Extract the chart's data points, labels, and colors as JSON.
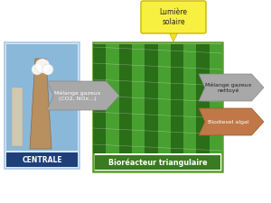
{
  "title_bioreacteur": "Bioréacteur triangulaire",
  "title_centrale": "CENTRALE",
  "label_lumiere": "Lumière\nsolaire",
  "label_melange_in": "Mélange gazeux\n(CO2, NOx...)",
  "label_melange_out": "Mélange gazeux\nnettoyé",
  "label_biodiesel": "Biodiesel algal",
  "arrow_yellow_face": "#f5e020",
  "arrow_yellow_edge": "#c8b800",
  "arrow_gray_face": "#a8a8a8",
  "arrow_gray_edge": "#888888",
  "arrow_brown_face": "#c07848",
  "arrow_brown_edge": "#a05828",
  "box_green_border": "#5a9e28",
  "box_green_fill": "#3a7a20",
  "box_blue_fill": "#1e3f7a",
  "box_centrale_bg": "#d8e8f8",
  "box_centrale_border": "#aac8e8",
  "lumiere_bg": "#f8f040",
  "lumiere_border": "#c8b800",
  "melange_in_bg": "#808080",
  "white": "#ffffff",
  "dark": "#222222"
}
